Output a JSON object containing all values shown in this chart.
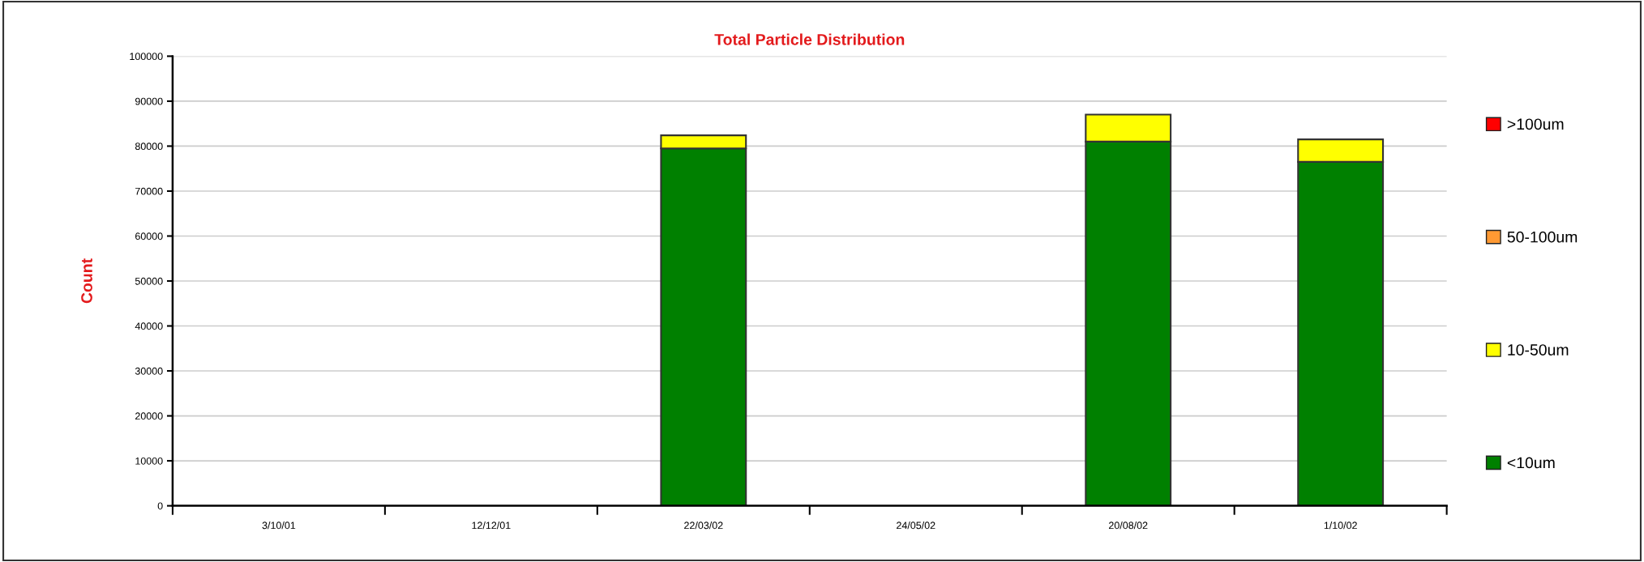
{
  "chart_data": {
    "type": "bar",
    "title": "Total Particle Distribution",
    "ylabel": "Count",
    "stacked": true,
    "grid": "y",
    "legend": "right",
    "categories": [
      "3/10/01",
      "12/12/01",
      "22/03/02",
      "24/05/02",
      "20/08/02",
      "1/10/02"
    ],
    "ylim": [
      0,
      100000
    ],
    "yticks": [
      0,
      10000,
      20000,
      30000,
      40000,
      50000,
      60000,
      70000,
      80000,
      90000,
      100000
    ],
    "series": [
      {
        "name": "<10um",
        "color": "#008000",
        "values": [
          null,
          null,
          79500,
          null,
          81000,
          76500
        ]
      },
      {
        "name": "10-50um",
        "color": "#ffff00",
        "values": [
          null,
          null,
          2900,
          null,
          6000,
          5000
        ]
      },
      {
        "name": "50-100um",
        "color": "#ff9933",
        "values": [
          null,
          null,
          null,
          null,
          null,
          null
        ]
      },
      {
        "name": ">100um",
        "color": "#ff0000",
        "values": [
          null,
          null,
          null,
          null,
          null,
          null
        ]
      }
    ]
  }
}
